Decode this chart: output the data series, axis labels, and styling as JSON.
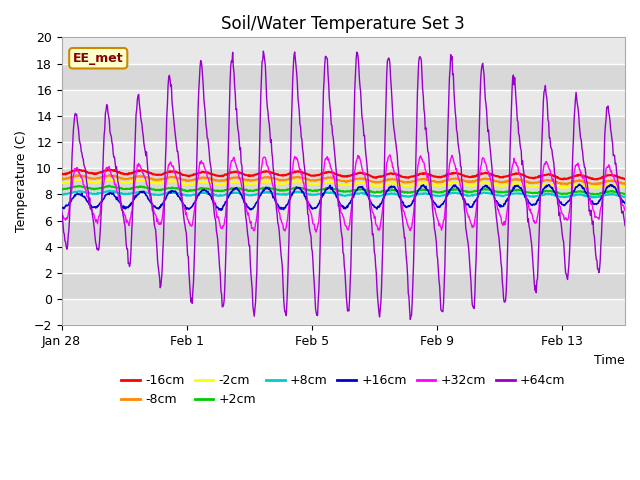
{
  "title": "Soil/Water Temperature Set 3",
  "xlabel": "Time",
  "ylabel": "Temperature (C)",
  "ylim": [
    -2,
    20
  ],
  "yticks": [
    -2,
    0,
    2,
    4,
    6,
    8,
    10,
    12,
    14,
    16,
    18,
    20
  ],
  "background_color": "#ffffff",
  "plot_bg_color": "#e8e8e8",
  "grid_color": "#ffffff",
  "annotation_text": "EE_met",
  "annotation_bg": "#ffffcc",
  "annotation_border": "#cc8800",
  "band_colors": [
    "#e8e8e8",
    "#d8d8d8"
  ],
  "series": [
    {
      "label": "-16cm",
      "color": "#ff0000",
      "base": 9.7,
      "amp": 0.15,
      "daily_amp": 0.08,
      "trend": -0.02
    },
    {
      "label": "-8cm",
      "color": "#ff8800",
      "base": 9.3,
      "amp": 0.12,
      "daily_amp": 0.1,
      "trend": -0.02
    },
    {
      "label": "-2cm",
      "color": "#ffff00",
      "base": 9.0,
      "amp": 0.1,
      "daily_amp": 0.12,
      "trend": -0.02
    },
    {
      "label": "+2cm",
      "color": "#00cc00",
      "base": 8.5,
      "amp": 0.1,
      "daily_amp": 0.14,
      "trend": -0.02
    },
    {
      "label": "+8cm",
      "color": "#00cccc",
      "base": 8.1,
      "amp": 0.1,
      "daily_amp": 0.16,
      "trend": -0.01
    },
    {
      "label": "+16cm",
      "color": "#0000cc",
      "base": 7.5,
      "amp": 0.5,
      "daily_amp": 0.6,
      "trend": 0.01
    },
    {
      "label": "+32cm",
      "color": "#ff00ff",
      "base": 8.5,
      "amp": 2.8,
      "daily_amp": 2.8,
      "trend": 0.0
    },
    {
      "label": "+64cm",
      "color": "#9900cc",
      "base": 9.5,
      "amp": 9.5,
      "daily_amp": 9.5,
      "trend": 0.0
    }
  ],
  "xticks": [
    "Jan 28",
    "Feb 1",
    "Feb 5",
    "Feb 9",
    "Feb 13"
  ],
  "xtick_days": [
    0,
    4,
    8,
    12,
    16
  ],
  "n_days": 18
}
